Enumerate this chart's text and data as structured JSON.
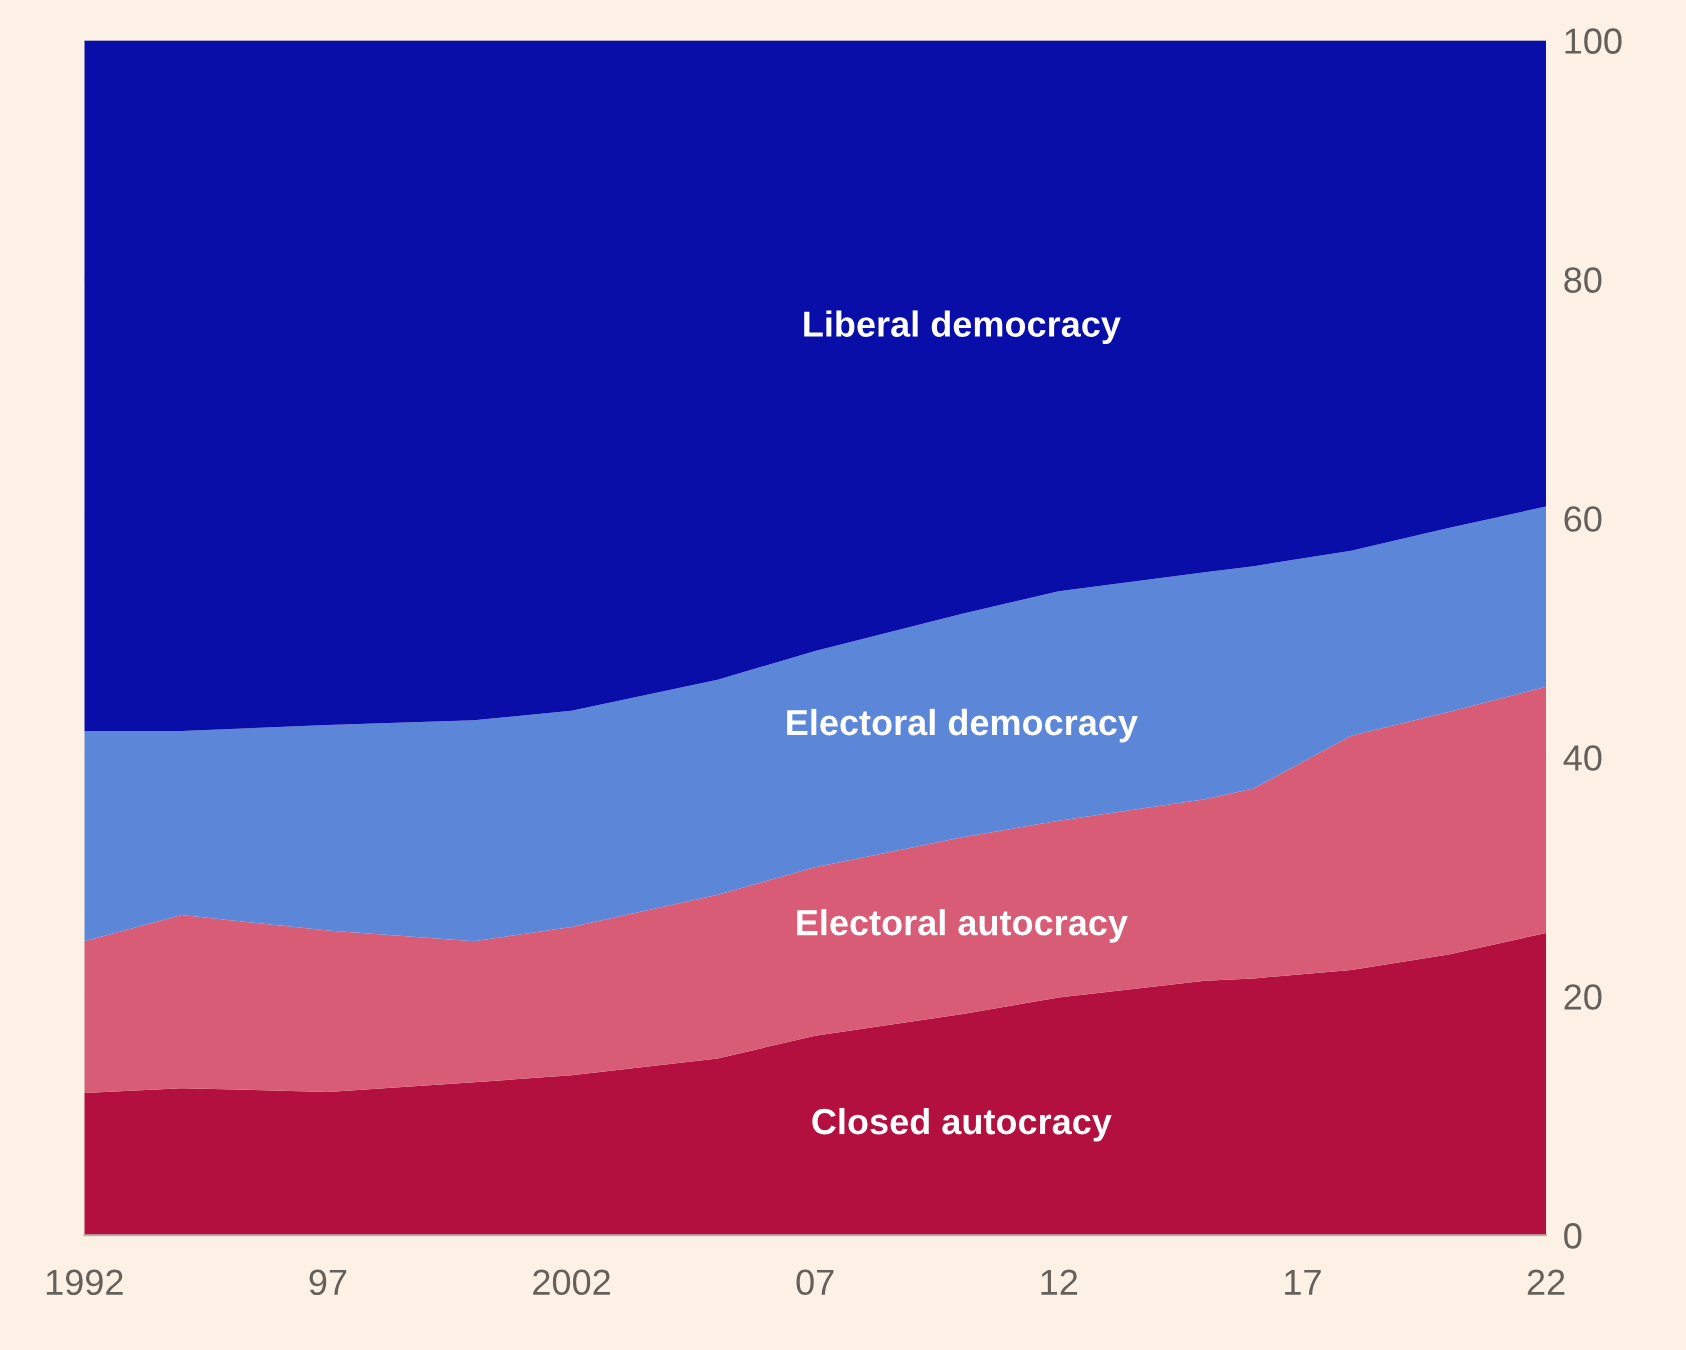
{
  "chart_data": {
    "type": "area",
    "stacked": true,
    "x": [
      1992,
      1994,
      1997,
      2000,
      2002,
      2005,
      2007,
      2010,
      2012,
      2015,
      2016,
      2018,
      2020,
      2022
    ],
    "series": [
      {
        "name": "Closed autocracy",
        "color": "#b3103f",
        "values": [
          11.9,
          12.3,
          12.0,
          12.8,
          13.4,
          14.8,
          16.7,
          18.5,
          19.9,
          21.3,
          21.5,
          22.2,
          23.5,
          25.3
        ]
      },
      {
        "name": "Electoral autocracy",
        "color": "#d95c76",
        "values": [
          12.7,
          14.5,
          13.5,
          11.8,
          12.4,
          13.7,
          14.1,
          14.8,
          14.8,
          15.2,
          15.9,
          19.6,
          20.3,
          20.6
        ]
      },
      {
        "name": "Electoral democracy",
        "color": "#5c87d9",
        "values": [
          17.6,
          15.4,
          17.2,
          18.5,
          18.1,
          18.0,
          18.1,
          18.7,
          19.2,
          19.0,
          18.6,
          15.5,
          15.4,
          15.1
        ]
      },
      {
        "name": "Liberal democracy",
        "color": "#0a0ea8",
        "values": [
          57.8,
          57.8,
          57.3,
          56.9,
          56.1,
          53.5,
          51.1,
          48.0,
          46.1,
          44.5,
          44.0,
          42.7,
          40.8,
          39.0
        ]
      }
    ],
    "xlim": [
      1992,
      2022
    ],
    "xticks": [
      1992,
      {
        "value": 1997,
        "label": "97"
      },
      2002,
      {
        "value": 2007,
        "label": "07"
      },
      {
        "value": 2012,
        "label": "12"
      },
      {
        "value": 2017,
        "label": "17"
      },
      {
        "value": 2022,
        "label": "22"
      }
    ],
    "ylim": [
      0,
      100
    ],
    "yticks": [
      0,
      20,
      40,
      60,
      80,
      100
    ],
    "grid": "y",
    "legend": false
  }
}
